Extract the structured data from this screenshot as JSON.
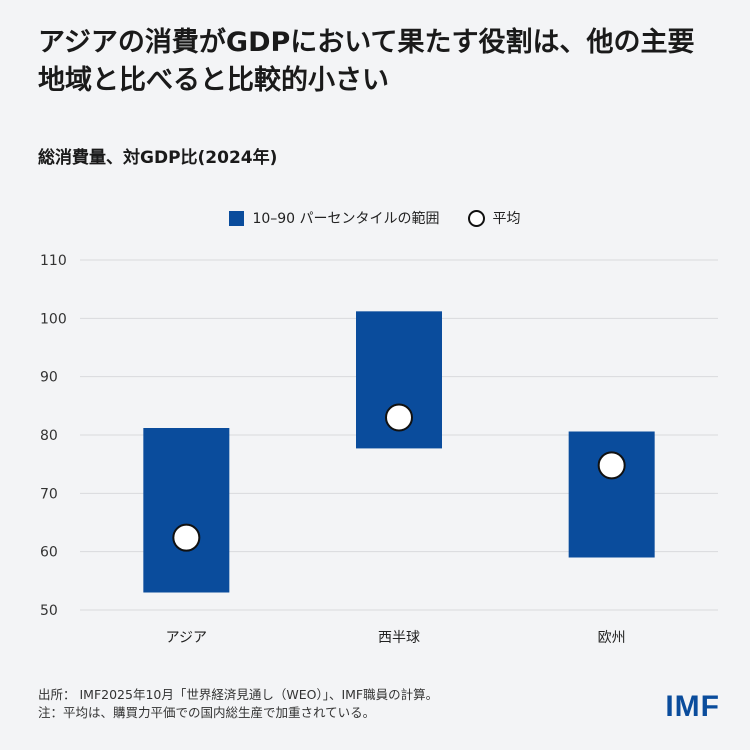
{
  "header": {
    "title": "アジアの消費がGDPにおいて果たす役割は、他の主要地域と比べると比較的小さい",
    "subtitle": "総消費量、対GDP比(2024年)"
  },
  "legend": {
    "range_label": "10–90 パーセンタイルの範囲",
    "mean_label": "平均"
  },
  "chart_data": {
    "type": "range",
    "categories": [
      "アジア",
      "西半球",
      "欧州"
    ],
    "ranges": [
      [
        53,
        81.2
      ],
      [
        77.7,
        101.2
      ],
      [
        59,
        80.6
      ]
    ],
    "means": [
      62.4,
      83,
      74.8
    ],
    "ylim": [
      50,
      110
    ],
    "yticks": [
      50,
      60,
      70,
      80,
      90,
      100,
      110
    ],
    "grid": true,
    "colors": {
      "range": "#0a4c9c",
      "mean_fill": "#ffffff",
      "mean_stroke": "#111111"
    }
  },
  "footer": {
    "source": "出所： IMF2025年10月「世界経済見通し（WEO）」、IMF職員の計算。",
    "note": "注：平均は、購買力平価での国内総生産で加重されている。",
    "logo": "IMF"
  }
}
